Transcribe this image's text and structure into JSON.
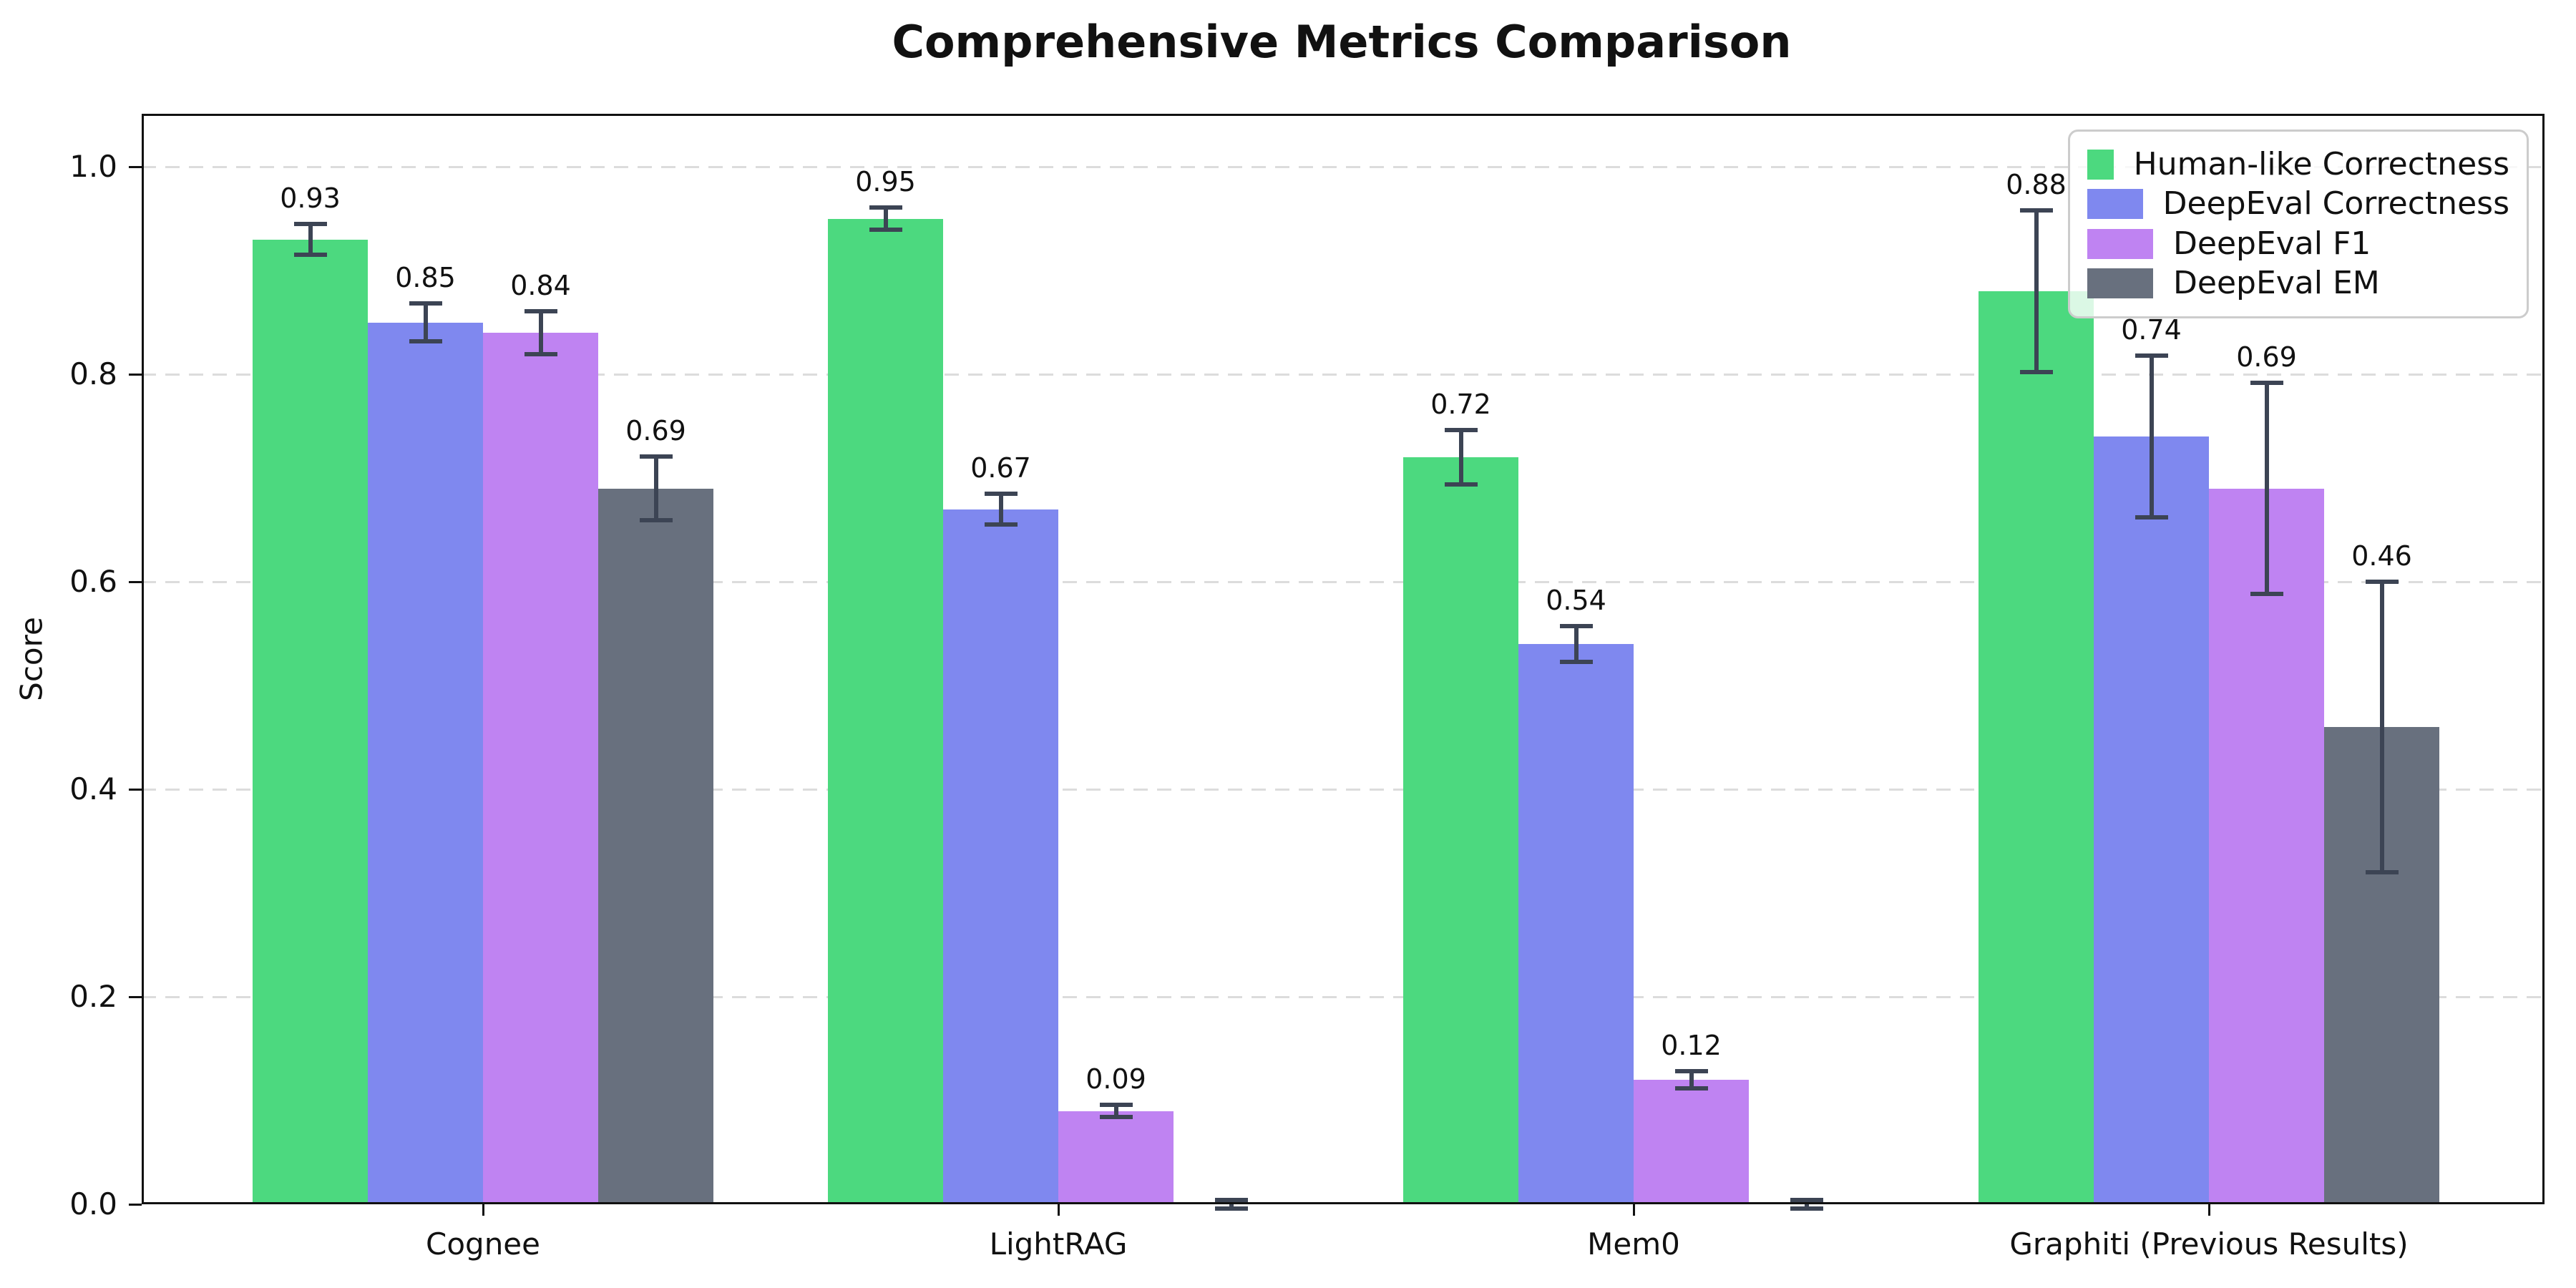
{
  "title": "Comprehensive Metrics Comparison",
  "chart_data": {
    "type": "bar",
    "title": "Comprehensive Metrics Comparison",
    "xlabel": "",
    "ylabel": "Score",
    "categories": [
      "Cognee",
      "LightRAG",
      "Mem0",
      "Graphiti (Previous Results)"
    ],
    "series": [
      {
        "name": "Human-like Correctness",
        "color": "#4cd97f",
        "values": [
          0.93,
          0.95,
          0.72,
          0.88
        ],
        "errors": [
          0.015,
          0.011,
          0.026,
          0.078
        ],
        "labels": [
          "0.93",
          "0.95",
          "0.72",
          "0.88"
        ]
      },
      {
        "name": "DeepEval Correctness",
        "color": "#7f88ef",
        "values": [
          0.85,
          0.67,
          0.54,
          0.74
        ],
        "errors": [
          0.018,
          0.015,
          0.017,
          0.078
        ],
        "labels": [
          "0.85",
          "0.67",
          "0.54",
          "0.74"
        ]
      },
      {
        "name": "DeepEval F1",
        "color": "#bf83f2",
        "values": [
          0.84,
          0.09,
          0.12,
          0.69
        ],
        "errors": [
          0.021,
          0.006,
          0.008,
          0.102
        ],
        "labels": [
          "0.84",
          "0.09",
          "0.12",
          "0.69"
        ]
      },
      {
        "name": "DeepEval EM",
        "color": "#68707e",
        "values": [
          0.69,
          0.0,
          0.0,
          0.46
        ],
        "errors": [
          0.031,
          0.004,
          0.004,
          0.14
        ],
        "labels": [
          "0.69",
          "",
          "",
          "0.46"
        ]
      }
    ],
    "ylim": [
      0,
      1.05
    ],
    "yticks": [
      0.0,
      0.2,
      0.4,
      0.6,
      0.8,
      1.0
    ],
    "ytick_labels": [
      "0.0",
      "0.2",
      "0.4",
      "0.6",
      "0.8",
      "1.0"
    ],
    "grid": "horizontal dashed",
    "grid_color": "#dcdcdc",
    "error_bar_color": "#3c4454",
    "legend_position": "upper right"
  }
}
